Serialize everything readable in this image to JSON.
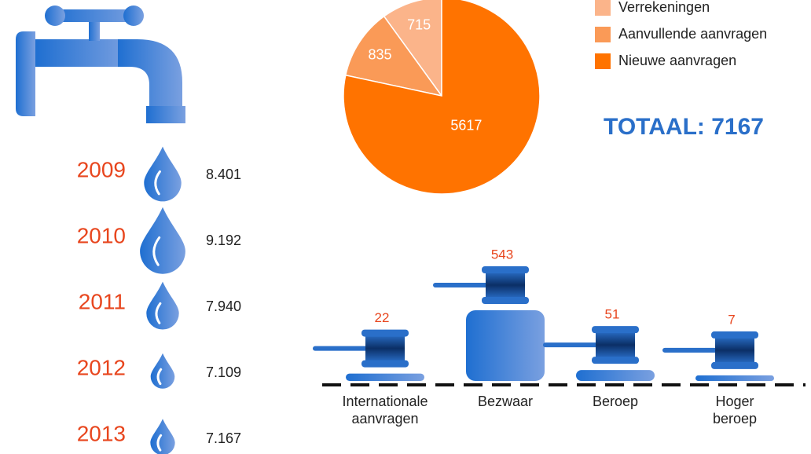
{
  "chart_data": [
    {
      "type": "pictograph",
      "categories": [
        "2009",
        "2010",
        "2011",
        "2012",
        "2013"
      ],
      "values": [
        8401,
        9192,
        7940,
        7109,
        7167
      ],
      "value_labels": [
        "8.401",
        "9.192",
        "7.940",
        "7.109",
        "7.167"
      ],
      "color": "#3f78d8",
      "label_color": "#e8461e"
    },
    {
      "type": "pie",
      "categories": [
        "Verrekeningen",
        "Aanvullende aanvragen",
        "Nieuwe aanvragen"
      ],
      "values": [
        715,
        835,
        5617
      ],
      "colors": [
        "#fbb48a",
        "#fa9a57",
        "#ff7300"
      ],
      "legend": "top-right",
      "annotation": "TOTAAL: 7167"
    },
    {
      "type": "gavel",
      "categories": [
        "Internationale aanvragen",
        "Bezwaar",
        "Beroep",
        "Hoger beroep"
      ],
      "values": [
        22,
        543,
        51,
        7
      ],
      "color": "#2a6fc9",
      "label_color": "#e8461e"
    }
  ]
}
